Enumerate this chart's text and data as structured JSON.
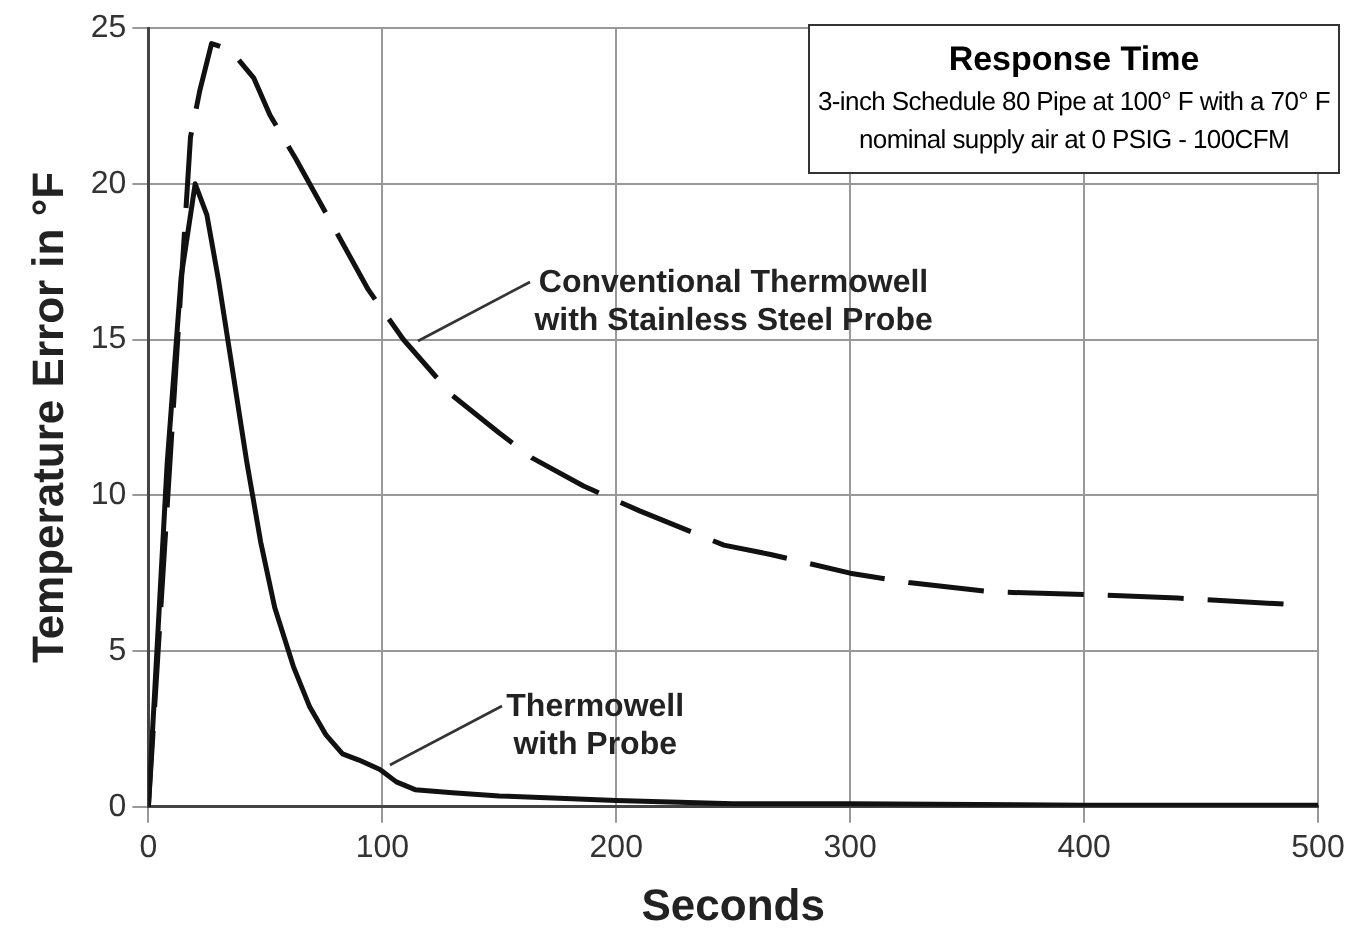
{
  "chart_data": {
    "type": "line",
    "title": "Response Time",
    "subtitle": "3-inch Schedule 80 Pipe at 100° F with a 70° F\nnominal supply air at 0 PSIG - 100CFM",
    "xlabel": "Seconds",
    "ylabel": "Temperature Error in °F",
    "series": [
      {
        "color": "#111111",
        "line_style": "dashed",
        "x": [
          0,
          10,
          18,
          22,
          27,
          35,
          45,
          52,
          63,
          80,
          94,
          109,
          130,
          150,
          164,
          186,
          210,
          246,
          266,
          300,
          325,
          360,
          406,
          440,
          487
        ],
        "values": [
          0,
          12,
          21.5,
          23,
          24.5,
          24.3,
          23.4,
          22.2,
          20.8,
          18.5,
          16.6,
          15.0,
          13.2,
          12.0,
          11.2,
          10.3,
          9.5,
          8.4,
          8.1,
          7.5,
          7.2,
          6.9,
          6.8,
          6.7,
          6.5
        ]
      },
      {
        "color": "#111111",
        "line_style": "solid",
        "x": [
          0,
          8,
          14,
          20,
          25,
          30,
          36,
          42,
          48,
          54,
          62,
          69,
          76,
          83,
          90,
          99,
          106,
          114,
          130,
          150,
          200,
          250,
          300,
          400,
          500
        ],
        "values": [
          0,
          11,
          17,
          20.0,
          19.0,
          16.9,
          14.0,
          11.1,
          8.5,
          6.4,
          4.5,
          3.2,
          2.3,
          1.7,
          1.5,
          1.2,
          0.8,
          0.55,
          0.45,
          0.35,
          0.2,
          0.1,
          0.1,
          0.05,
          0.05
        ]
      }
    ],
    "annotations": [
      {
        "text": "Conventional Thermowell\nwith Stainless Steel Probe",
        "x": 112,
        "y": 14.8
      },
      {
        "text": "Thermowell\nwith Probe",
        "x": 100,
        "y": 1.2
      }
    ],
    "xlim": [
      0,
      500
    ],
    "xticks": [
      0,
      100,
      200,
      300,
      400,
      500
    ],
    "ylim": [
      0,
      25
    ],
    "yticks": [
      0,
      5,
      10,
      15,
      20,
      25
    ],
    "grid": true,
    "marker": "none",
    "legend": false
  }
}
